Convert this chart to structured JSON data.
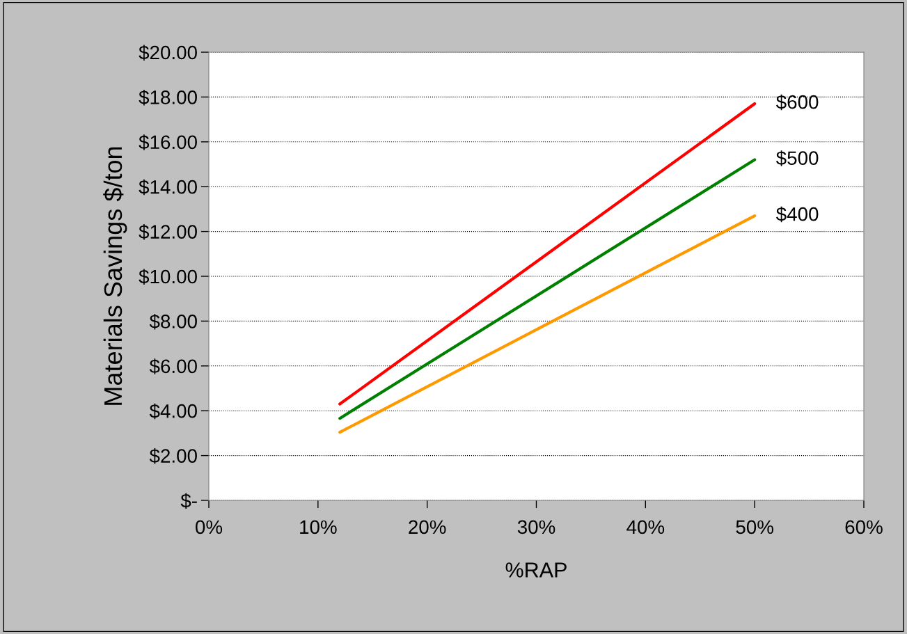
{
  "chart_data": {
    "type": "line",
    "xlabel": "%RAP",
    "ylabel": "Materials Savings $/ton",
    "x": [
      12,
      50
    ],
    "series": [
      {
        "name": "$600",
        "color": "#ff0000",
        "values": [
          4.3,
          17.7
        ]
      },
      {
        "name": "$500",
        "color": "#008000",
        "values": [
          3.66,
          15.2
        ]
      },
      {
        "name": "$400",
        "color": "#ff9900",
        "values": [
          3.04,
          12.7
        ]
      }
    ],
    "xlim": [
      0,
      60
    ],
    "xticks": [
      {
        "value": 0,
        "label": "0%"
      },
      {
        "value": 10,
        "label": "10%"
      },
      {
        "value": 20,
        "label": "20%"
      },
      {
        "value": 30,
        "label": "30%"
      },
      {
        "value": 40,
        "label": "40%"
      },
      {
        "value": 50,
        "label": "50%"
      },
      {
        "value": 60,
        "label": "60%"
      }
    ],
    "ylim": [
      0,
      20
    ],
    "yticks": [
      {
        "value": 0,
        "label": "$-"
      },
      {
        "value": 2,
        "label": "$2.00"
      },
      {
        "value": 4,
        "label": "$4.00"
      },
      {
        "value": 6,
        "label": "$6.00"
      },
      {
        "value": 8,
        "label": "$8.00"
      },
      {
        "value": 10,
        "label": "$10.00"
      },
      {
        "value": 12,
        "label": "$12.00"
      },
      {
        "value": 14,
        "label": "$14.00"
      },
      {
        "value": 16,
        "label": "$16.00"
      },
      {
        "value": 18,
        "label": "$18.00"
      },
      {
        "value": 20,
        "label": "$20.00"
      }
    ],
    "grid": "y",
    "marker": "none",
    "line_style": "solid",
    "legend": false
  }
}
